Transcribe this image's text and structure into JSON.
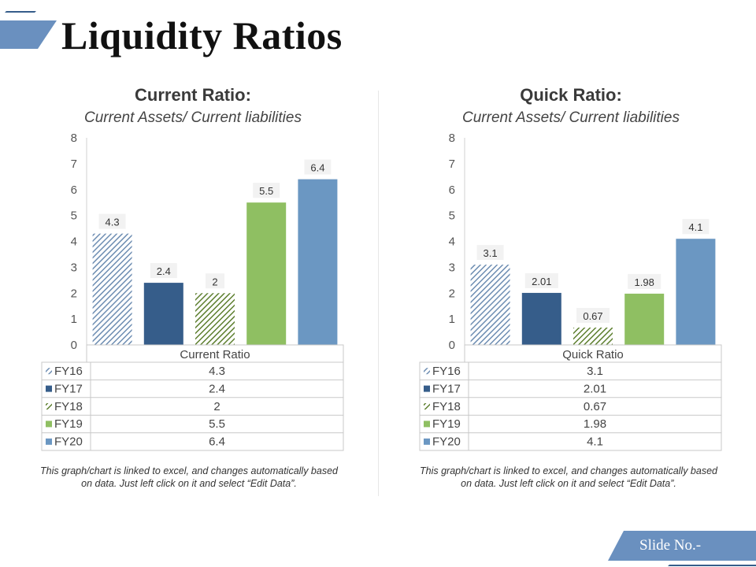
{
  "page": {
    "title": "Liquidity Ratios",
    "slide_no": "Slide No.-"
  },
  "colors": {
    "FY16": "#6d8db2",
    "FY17": "#365d8a",
    "FY18": "#5d7f2f",
    "FY19": "#8fbf62",
    "FY20": "#6b97c2",
    "accent": "#6a90bf"
  },
  "chart_data": [
    {
      "type": "bar",
      "title": "Current Ratio:",
      "subtitle": "Current Assets/ Current liabilities",
      "series_name": "Current Ratio",
      "categories": [
        "FY16",
        "FY17",
        "FY18",
        "FY19",
        "FY20"
      ],
      "values": [
        4.3,
        2.4,
        2,
        5.5,
        6.4
      ],
      "labels": [
        "4.3",
        "2.4",
        "2",
        "5.5",
        "6.4"
      ],
      "ylim": [
        0,
        8
      ],
      "yticks": [
        0,
        1,
        2,
        3,
        4,
        5,
        6,
        7,
        8
      ],
      "legend": "data-table-below",
      "note": "This graph/chart is linked to excel, and changes automatically based on data. Just left click on it and select “Edit Data”."
    },
    {
      "type": "bar",
      "title": "Quick Ratio:",
      "subtitle": "Current Assets/ Current liabilities",
      "series_name": "Quick Ratio",
      "categories": [
        "FY16",
        "FY17",
        "FY18",
        "FY19",
        "FY20"
      ],
      "values": [
        3.1,
        2.01,
        0.67,
        1.98,
        4.1
      ],
      "labels": [
        "3.1",
        "2.01",
        "0.67",
        "1.98",
        "4.1"
      ],
      "ylim": [
        0,
        8
      ],
      "yticks": [
        0,
        1,
        2,
        3,
        4,
        5,
        6,
        7,
        8
      ],
      "legend": "data-table-below",
      "note": "This graph/chart is linked to excel, and changes automatically based on data. Just left click on it and select “Edit Data”."
    }
  ]
}
